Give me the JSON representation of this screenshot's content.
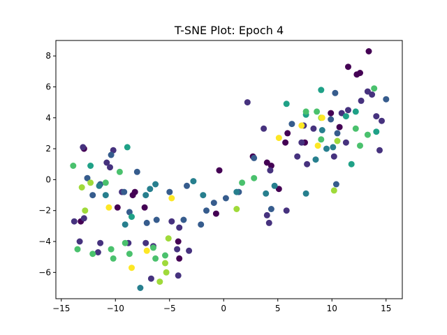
{
  "chart_data": {
    "type": "scatter",
    "title": "T-SNE Plot: Epoch 4",
    "xlabel": "",
    "ylabel": "",
    "xlim": [
      -15.5,
      16.5
    ],
    "ylim": [
      -7.7,
      9.0
    ],
    "xticks": [
      -15,
      -10,
      -5,
      0,
      5,
      10,
      15
    ],
    "yticks": [
      -6,
      -4,
      -2,
      0,
      2,
      4,
      6,
      8
    ],
    "grid": false,
    "legend": "none",
    "colormap": "viridis",
    "points": [
      {
        "x": -13.2,
        "y": -2.7,
        "c": "#440154"
      },
      {
        "x": -12.9,
        "y": 2.0,
        "c": "#440154"
      },
      {
        "x": -9.8,
        "y": -1.8,
        "c": "#440154"
      },
      {
        "x": -8.4,
        "y": -1.0,
        "c": "#440154"
      },
      {
        "x": -8.2,
        "y": -0.8,
        "c": "#440154"
      },
      {
        "x": -7.3,
        "y": -1.8,
        "c": "#440154"
      },
      {
        "x": -4.2,
        "y": -4.0,
        "c": "#440154"
      },
      {
        "x": -4.1,
        "y": -5.1,
        "c": "#440154"
      },
      {
        "x": -0.7,
        "y": -2.2,
        "c": "#440154"
      },
      {
        "x": -0.4,
        "y": 0.6,
        "c": "#440154"
      },
      {
        "x": 2.7,
        "y": 1.5,
        "c": "#440154"
      },
      {
        "x": 4.0,
        "y": 1.1,
        "c": "#440154"
      },
      {
        "x": 4.4,
        "y": 0.9,
        "c": "#440154"
      },
      {
        "x": 5.1,
        "y": -0.6,
        "c": "#440154"
      },
      {
        "x": 5.7,
        "y": 2.4,
        "c": "#440154"
      },
      {
        "x": 5.9,
        "y": 3.0,
        "c": "#440154"
      },
      {
        "x": 7.5,
        "y": 2.4,
        "c": "#440154"
      },
      {
        "x": 9.9,
        "y": 4.3,
        "c": "#440154"
      },
      {
        "x": 10.7,
        "y": 3.4,
        "c": "#440154"
      },
      {
        "x": 12.3,
        "y": 6.8,
        "c": "#440154"
      },
      {
        "x": 12.6,
        "y": 6.9,
        "c": "#440154"
      },
      {
        "x": 11.5,
        "y": 7.3,
        "c": "#440154"
      },
      {
        "x": 13.4,
        "y": 8.3,
        "c": "#440154"
      },
      {
        "x": -13.8,
        "y": -2.7,
        "c": "#46327e"
      },
      {
        "x": -13.3,
        "y": -4.0,
        "c": "#46327e"
      },
      {
        "x": -12.9,
        "y": -2.5,
        "c": "#46327e"
      },
      {
        "x": -13.0,
        "y": 2.1,
        "c": "#46327e"
      },
      {
        "x": -11.6,
        "y": -4.7,
        "c": "#46327e"
      },
      {
        "x": -11.4,
        "y": -4.1,
        "c": "#46327e"
      },
      {
        "x": -10.8,
        "y": 1.1,
        "c": "#46327e"
      },
      {
        "x": -10.5,
        "y": 0.8,
        "c": "#46327e"
      },
      {
        "x": -10.2,
        "y": 1.9,
        "c": "#46327e"
      },
      {
        "x": -9.4,
        "y": -0.8,
        "c": "#46327e"
      },
      {
        "x": -8.8,
        "y": -4.1,
        "c": "#46327e"
      },
      {
        "x": -7.2,
        "y": -4.1,
        "c": "#46327e"
      },
      {
        "x": -6.7,
        "y": -6.4,
        "c": "#46327e"
      },
      {
        "x": -6.5,
        "y": -4.3,
        "c": "#46327e"
      },
      {
        "x": -4.8,
        "y": -2.7,
        "c": "#46327e"
      },
      {
        "x": -4.1,
        "y": -3.1,
        "c": "#46327e"
      },
      {
        "x": -4.3,
        "y": -4.5,
        "c": "#46327e"
      },
      {
        "x": -4.2,
        "y": -6.2,
        "c": "#46327e"
      },
      {
        "x": -3.2,
        "y": -4.6,
        "c": "#46327e"
      },
      {
        "x": 2.2,
        "y": 5.0,
        "c": "#46327e"
      },
      {
        "x": 3.7,
        "y": 3.3,
        "c": "#46327e"
      },
      {
        "x": 4.0,
        "y": -2.3,
        "c": "#46327e"
      },
      {
        "x": 4.2,
        "y": -2.8,
        "c": "#46327e"
      },
      {
        "x": 4.3,
        "y": 0.6,
        "c": "#46327e"
      },
      {
        "x": 5.8,
        "y": -2.0,
        "c": "#46327e"
      },
      {
        "x": 6.8,
        "y": 1.5,
        "c": "#46327e"
      },
      {
        "x": 7.2,
        "y": 2.4,
        "c": "#46327e"
      },
      {
        "x": 7.4,
        "y": 3.5,
        "c": "#46327e"
      },
      {
        "x": 7.7,
        "y": 1.0,
        "c": "#46327e"
      },
      {
        "x": 8.3,
        "y": 3.3,
        "c": "#46327e"
      },
      {
        "x": 10.2,
        "y": 1.5,
        "c": "#46327e"
      },
      {
        "x": 10.9,
        "y": 4.3,
        "c": "#46327e"
      },
      {
        "x": 11.3,
        "y": 2.4,
        "c": "#46327e"
      },
      {
        "x": 11.5,
        "y": 4.5,
        "c": "#46327e"
      },
      {
        "x": 12.7,
        "y": 5.1,
        "c": "#46327e"
      },
      {
        "x": 13.3,
        "y": 5.7,
        "c": "#46327e"
      },
      {
        "x": 13.7,
        "y": 5.5,
        "c": "#46327e"
      },
      {
        "x": 14.1,
        "y": 4.1,
        "c": "#46327e"
      },
      {
        "x": 14.6,
        "y": 3.8,
        "c": "#46327e"
      },
      {
        "x": 14.4,
        "y": 1.9,
        "c": "#46327e"
      },
      {
        "x": -12.6,
        "y": 0.1,
        "c": "#365c8d"
      },
      {
        "x": -12.1,
        "y": -1.0,
        "c": "#365c8d"
      },
      {
        "x": -11.4,
        "y": -0.3,
        "c": "#365c8d"
      },
      {
        "x": -10.4,
        "y": 1.6,
        "c": "#365c8d"
      },
      {
        "x": -9.2,
        "y": -0.8,
        "c": "#365c8d"
      },
      {
        "x": -8.7,
        "y": -2.1,
        "c": "#365c8d"
      },
      {
        "x": -8.0,
        "y": 0.5,
        "c": "#365c8d"
      },
      {
        "x": -7.1,
        "y": -2.8,
        "c": "#365c8d"
      },
      {
        "x": -6.2,
        "y": -2.6,
        "c": "#365c8d"
      },
      {
        "x": -5.0,
        "y": -0.8,
        "c": "#365c8d"
      },
      {
        "x": -3.4,
        "y": -0.4,
        "c": "#365c8d"
      },
      {
        "x": -3.7,
        "y": -2.6,
        "c": "#365c8d"
      },
      {
        "x": -2.1,
        "y": -2.9,
        "c": "#365c8d"
      },
      {
        "x": -1.6,
        "y": -2.0,
        "c": "#365c8d"
      },
      {
        "x": -0.9,
        "y": -1.5,
        "c": "#365c8d"
      },
      {
        "x": 0.2,
        "y": -1.2,
        "c": "#365c8d"
      },
      {
        "x": 1.4,
        "y": -0.8,
        "c": "#365c8d"
      },
      {
        "x": 2.8,
        "y": 1.4,
        "c": "#365c8d"
      },
      {
        "x": 4.4,
        "y": -1.9,
        "c": "#365c8d"
      },
      {
        "x": 6.3,
        "y": 3.6,
        "c": "#365c8d"
      },
      {
        "x": 9.9,
        "y": 3.9,
        "c": "#365c8d"
      },
      {
        "x": 10.3,
        "y": 5.6,
        "c": "#365c8d"
      },
      {
        "x": 10.5,
        "y": 3.0,
        "c": "#365c8d"
      },
      {
        "x": 15.0,
        "y": 5.2,
        "c": "#365c8d"
      },
      {
        "x": 10.4,
        "y": -0.3,
        "c": "#365c8d"
      },
      {
        "x": -11.5,
        "y": -0.4,
        "c": "#277f8e"
      },
      {
        "x": -10.9,
        "y": -1.0,
        "c": "#277f8e"
      },
      {
        "x": -9.1,
        "y": -2.9,
        "c": "#277f8e"
      },
      {
        "x": -7.7,
        "y": -7.0,
        "c": "#277f8e"
      },
      {
        "x": -7.2,
        "y": -1.0,
        "c": "#277f8e"
      },
      {
        "x": -6.8,
        "y": -0.6,
        "c": "#277f8e"
      },
      {
        "x": -6.3,
        "y": -0.3,
        "c": "#277f8e"
      },
      {
        "x": -2.8,
        "y": -0.1,
        "c": "#277f8e"
      },
      {
        "x": -1.9,
        "y": -1.0,
        "c": "#277f8e"
      },
      {
        "x": 1.2,
        "y": -0.8,
        "c": "#277f8e"
      },
      {
        "x": 3.9,
        "y": -0.9,
        "c": "#277f8e"
      },
      {
        "x": 4.7,
        "y": -0.4,
        "c": "#277f8e"
      },
      {
        "x": 7.6,
        "y": -0.9,
        "c": "#277f8e"
      },
      {
        "x": 8.5,
        "y": 1.3,
        "c": "#277f8e"
      },
      {
        "x": 9.1,
        "y": 3.2,
        "c": "#277f8e"
      },
      {
        "x": 9.5,
        "y": 2.0,
        "c": "#277f8e"
      },
      {
        "x": 10.1,
        "y": 2.1,
        "c": "#277f8e"
      },
      {
        "x": -8.5,
        "y": -2.4,
        "c": "#1fa187"
      },
      {
        "x": -8.9,
        "y": 2.1,
        "c": "#1fa187"
      },
      {
        "x": -12.3,
        "y": 0.9,
        "c": "#1fa187"
      },
      {
        "x": 5.8,
        "y": 4.9,
        "c": "#1fa187"
      },
      {
        "x": 7.6,
        "y": 4.2,
        "c": "#1fa187"
      },
      {
        "x": 12.2,
        "y": 4.4,
        "c": "#1fa187"
      },
      {
        "x": 11.3,
        "y": 4.1,
        "c": "#1fa187"
      },
      {
        "x": 9.0,
        "y": 5.8,
        "c": "#1fa187"
      },
      {
        "x": 11.8,
        "y": 1.0,
        "c": "#1fa187"
      },
      {
        "x": 14.1,
        "y": 3.1,
        "c": "#1fa187"
      },
      {
        "x": -13.9,
        "y": 0.9,
        "c": "#4ac16d"
      },
      {
        "x": -13.5,
        "y": -4.5,
        "c": "#4ac16d"
      },
      {
        "x": -12.1,
        "y": -4.8,
        "c": "#4ac16d"
      },
      {
        "x": -10.9,
        "y": -0.2,
        "c": "#4ac16d"
      },
      {
        "x": -10.4,
        "y": -4.5,
        "c": "#4ac16d"
      },
      {
        "x": -10.2,
        "y": -5.1,
        "c": "#4ac16d"
      },
      {
        "x": -9.6,
        "y": 0.5,
        "c": "#4ac16d"
      },
      {
        "x": -8.7,
        "y": -4.8,
        "c": "#4ac16d"
      },
      {
        "x": -9.1,
        "y": -4.1,
        "c": "#4ac16d"
      },
      {
        "x": -6.5,
        "y": -4.4,
        "c": "#4ac16d"
      },
      {
        "x": -6.3,
        "y": -5.1,
        "c": "#4ac16d"
      },
      {
        "x": -5.4,
        "y": -4.9,
        "c": "#4ac16d"
      },
      {
        "x": 1.7,
        "y": -0.2,
        "c": "#4ac16d"
      },
      {
        "x": 2.8,
        "y": 0.1,
        "c": "#4ac16d"
      },
      {
        "x": 7.6,
        "y": 4.4,
        "c": "#4ac16d"
      },
      {
        "x": 8.6,
        "y": 4.4,
        "c": "#4ac16d"
      },
      {
        "x": 9.0,
        "y": 2.6,
        "c": "#4ac16d"
      },
      {
        "x": 12.2,
        "y": 3.3,
        "c": "#4ac16d"
      },
      {
        "x": 12.6,
        "y": 2.2,
        "c": "#4ac16d"
      },
      {
        "x": 13.3,
        "y": 2.9,
        "c": "#4ac16d"
      },
      {
        "x": 13.9,
        "y": 5.9,
        "c": "#4ac16d"
      },
      {
        "x": -12.3,
        "y": -0.2,
        "c": "#9fda3a"
      },
      {
        "x": -12.8,
        "y": -2.0,
        "c": "#9fda3a"
      },
      {
        "x": -13.1,
        "y": -0.5,
        "c": "#9fda3a"
      },
      {
        "x": -5.9,
        "y": -6.6,
        "c": "#9fda3a"
      },
      {
        "x": -5.3,
        "y": -6.0,
        "c": "#9fda3a"
      },
      {
        "x": -5.4,
        "y": -5.4,
        "c": "#9fda3a"
      },
      {
        "x": -5.1,
        "y": -3.8,
        "c": "#9fda3a"
      },
      {
        "x": 1.2,
        "y": -1.9,
        "c": "#9fda3a"
      },
      {
        "x": 10.2,
        "y": -0.7,
        "c": "#9fda3a"
      },
      {
        "x": 10.5,
        "y": 2.5,
        "c": "#9fda3a"
      },
      {
        "x": 9.0,
        "y": 4.0,
        "c": "#9fda3a"
      },
      {
        "x": -10.6,
        "y": -1.8,
        "c": "#fde725"
      },
      {
        "x": -8.5,
        "y": -5.7,
        "c": "#fde725"
      },
      {
        "x": -7.1,
        "y": -4.6,
        "c": "#fde725"
      },
      {
        "x": -4.8,
        "y": -1.2,
        "c": "#fde725"
      },
      {
        "x": 5.1,
        "y": 2.7,
        "c": "#fde725"
      },
      {
        "x": 7.2,
        "y": 3.5,
        "c": "#fde725"
      },
      {
        "x": 8.7,
        "y": 2.2,
        "c": "#fde725"
      },
      {
        "x": 9.1,
        "y": 4.0,
        "c": "#fde725"
      }
    ]
  }
}
